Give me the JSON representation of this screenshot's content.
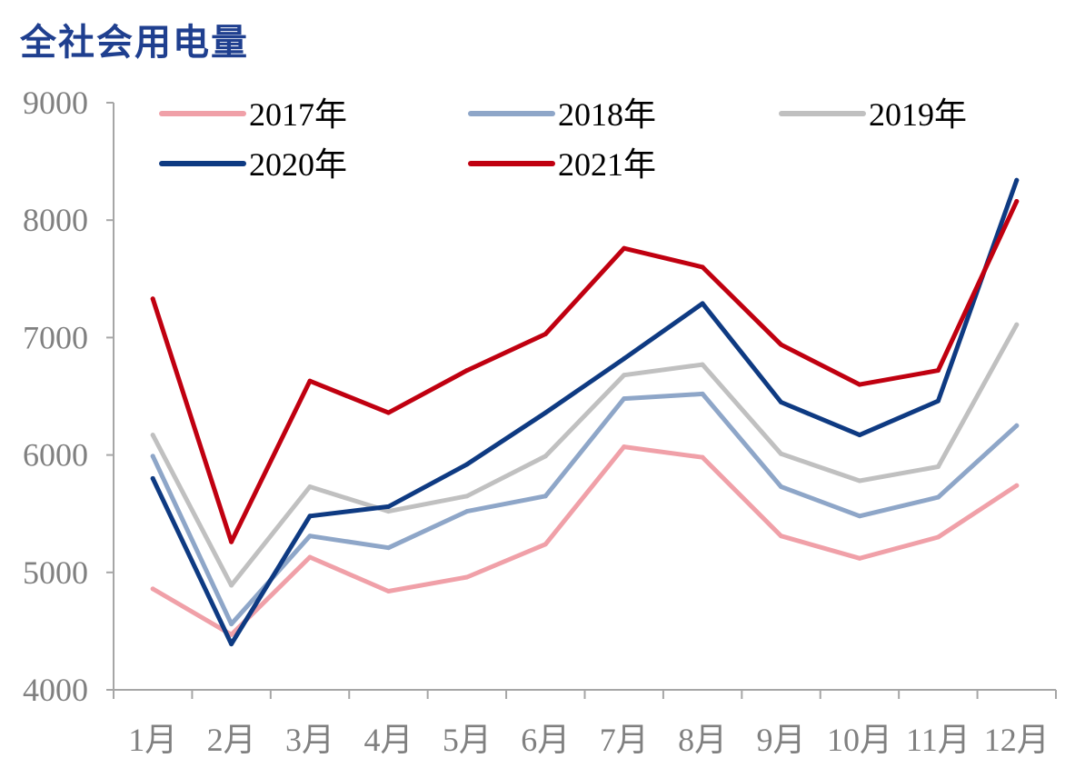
{
  "title": "全社会用电量",
  "chart_data": {
    "type": "line",
    "title": "全社会用电量",
    "xlabel": "",
    "ylabel": "",
    "categories": [
      "1月",
      "2月",
      "3月",
      "4月",
      "5月",
      "6月",
      "7月",
      "8月",
      "9月",
      "10月",
      "11月",
      "12月"
    ],
    "ylim": [
      4000,
      9000
    ],
    "yticks": [
      4000,
      5000,
      6000,
      7000,
      8000,
      9000
    ],
    "grid": false,
    "legend_position": "top",
    "series": [
      {
        "name": "2017年",
        "color": "#f0a0a8",
        "values": [
          4860,
          4470,
          5130,
          4840,
          4960,
          5240,
          6070,
          5980,
          5310,
          5120,
          5300,
          5740
        ]
      },
      {
        "name": "2018年",
        "color": "#8ea6c8",
        "values": [
          5990,
          4560,
          5310,
          5210,
          5520,
          5650,
          6480,
          6520,
          5730,
          5480,
          5640,
          6250
        ]
      },
      {
        "name": "2019年",
        "color": "#c0c0c0",
        "values": [
          6170,
          4890,
          5730,
          5520,
          5650,
          5990,
          6680,
          6770,
          6010,
          5780,
          5900,
          7110
        ]
      },
      {
        "name": "2020年",
        "color": "#0e3a82",
        "values": [
          5800,
          4390,
          5480,
          5560,
          5920,
          6360,
          6820,
          7290,
          6450,
          6170,
          6460,
          8340
        ]
      },
      {
        "name": "2021年",
        "color": "#c00010",
        "values": [
          7330,
          5260,
          6630,
          6360,
          6720,
          7030,
          7760,
          7600,
          6940,
          6600,
          6720,
          8160
        ]
      }
    ]
  }
}
